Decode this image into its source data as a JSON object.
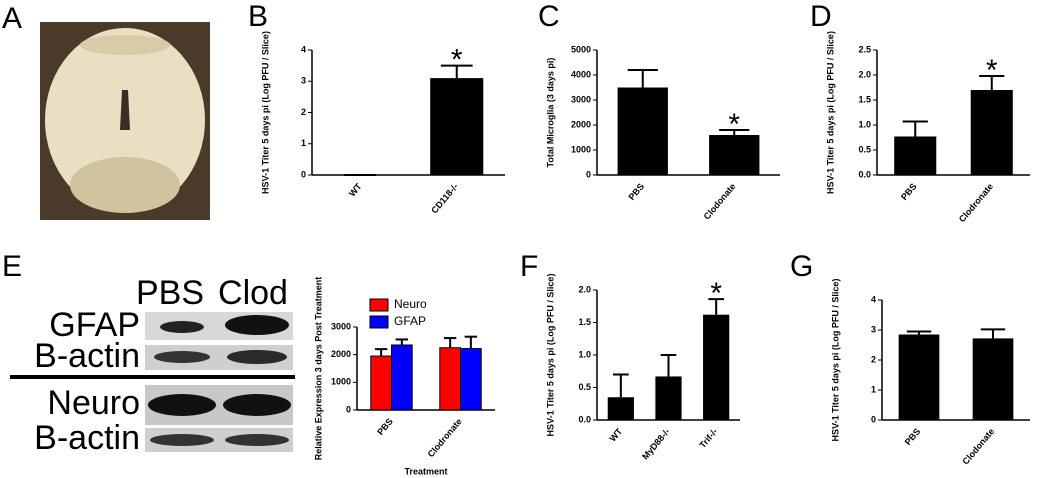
{
  "figure": {
    "panel": "A",
    "blot": {
      "columns": [
        "PBS",
        "Clod"
      ],
      "rows": [
        "GFAP",
        "B-actin",
        "Neuro",
        "B-actin"
      ]
    }
  },
  "chart_data": [
    {
      "type": "bar",
      "panel": "B",
      "ylabel": "HSV-1 Titer 5 days pi (Log PFU / Slice)",
      "categories": [
        "WT",
        "CD118-/-"
      ],
      "values": [
        0,
        3.1
      ],
      "errors": [
        0,
        0.4
      ],
      "significance": [
        null,
        "*"
      ],
      "color": "#000000",
      "ylim": [
        0,
        4
      ],
      "yticks": [
        0,
        1,
        2,
        3,
        4
      ]
    },
    {
      "type": "bar",
      "panel": "C",
      "ylabel": "Total Microglia (3 days pi)",
      "categories": [
        "PBS",
        "Clodonate"
      ],
      "values": [
        3500,
        1600
      ],
      "errors": [
        700,
        200
      ],
      "significance": [
        null,
        "*"
      ],
      "color": "#000000",
      "ylim": [
        0,
        5000
      ],
      "yticks": [
        0,
        1000,
        2000,
        3000,
        4000,
        5000
      ]
    },
    {
      "type": "bar",
      "panel": "D",
      "ylabel": "HSV-1 Titer 5 days pi (Log PFU / Slice)",
      "categories": [
        "PBS",
        "Clodronate"
      ],
      "values": [
        0.77,
        1.7
      ],
      "errors": [
        0.3,
        0.28
      ],
      "significance": [
        null,
        "*"
      ],
      "color": "#000000",
      "ylim": [
        0,
        2.5
      ],
      "yticks": [
        {
          "value": 0,
          "label": "0.0"
        },
        0.5,
        {
          "value": 1,
          "label": "1.0"
        },
        1.5,
        {
          "value": 2,
          "label": "2.0"
        },
        2.5
      ]
    },
    {
      "type": "grouped_bar",
      "panel": "E",
      "ylabel": "Relative Expression 3 days Post Treatment",
      "xlabel": "Treatment",
      "categories": [
        "PBS",
        "Clodronate"
      ],
      "series": [
        {
          "name": "Neuro",
          "color": "#ff0000",
          "values": [
            1950,
            2250
          ],
          "errors": [
            250,
            350
          ]
        },
        {
          "name": "GFAP",
          "color": "#0000ff",
          "values": [
            2350,
            2220
          ],
          "errors": [
            200,
            430
          ]
        }
      ],
      "ylim": [
        0,
        3000
      ],
      "yticks": [
        0,
        1000,
        2000,
        3000
      ]
    },
    {
      "type": "bar",
      "panel": "F",
      "ylabel": "HSV-1 Titer 5 days pi (Log PFU / Slice)",
      "categories": [
        "WT",
        "MyD88-/-",
        "Trif-/-"
      ],
      "values": [
        0.35,
        0.67,
        1.62
      ],
      "errors": [
        0.35,
        0.33,
        0.24
      ],
      "significance": [
        null,
        null,
        "*"
      ],
      "color": "#000000",
      "ylim": [
        0,
        2
      ],
      "yticks": [
        {
          "value": 0,
          "label": "0.0"
        },
        0.5,
        {
          "value": 1,
          "label": "1.0"
        },
        1.5,
        {
          "value": 2,
          "label": "2.0"
        }
      ]
    },
    {
      "type": "bar",
      "panel": "G",
      "ylabel": "HSV-1 Titer 5 days pi (Log PFU / Slice)",
      "categories": [
        "PBS",
        "Clodonate"
      ],
      "values": [
        2.85,
        2.72
      ],
      "errors": [
        0.1,
        0.3
      ],
      "color": "#000000",
      "ylim": [
        0,
        4
      ],
      "yticks": [
        0,
        1,
        2,
        3,
        4
      ]
    }
  ]
}
